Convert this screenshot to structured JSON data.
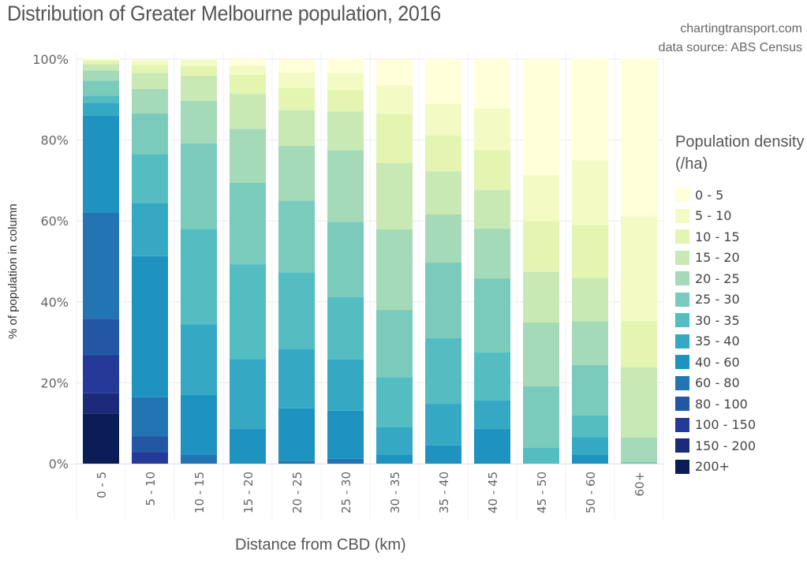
{
  "header": {
    "title": "Distribution of Greater Melbourne population, 2016",
    "credit_site": "chartingtransport.com",
    "credit_source": "data source: ABS Census"
  },
  "chart_data": {
    "type": "bar",
    "stacked": true,
    "title": "Distribution of Greater Melbourne population, 2016",
    "xlabel": "Distance from CBD (km)",
    "ylabel": "% of population in column",
    "ylim": [
      0,
      100
    ],
    "y_ticks": [
      "0%",
      "20%",
      "40%",
      "60%",
      "80%",
      "100%"
    ],
    "y_tick_values": [
      0,
      20,
      40,
      60,
      80,
      100
    ],
    "grid": true,
    "legend_title": "Population density (/ha)",
    "legend_position": "right",
    "categories": [
      "0 - 5",
      "5 - 10",
      "10 - 15",
      "15 - 20",
      "20 - 25",
      "25 - 30",
      "30 - 35",
      "35 - 40",
      "40 - 45",
      "45 - 50",
      "50 - 60",
      "60+"
    ],
    "series": [
      {
        "name": "200+",
        "color": "#0b1d57",
        "values": [
          12.3,
          0,
          0,
          0,
          0,
          0,
          0,
          0,
          0,
          0,
          0,
          0
        ]
      },
      {
        "name": "150 - 200",
        "color": "#1c2a7a",
        "values": [
          5.1,
          0,
          0,
          0,
          0,
          0,
          0,
          0,
          0,
          0,
          0,
          0
        ]
      },
      {
        "name": "100 - 150",
        "color": "#253a98",
        "values": [
          9.4,
          2.9,
          0,
          0,
          0,
          0,
          0,
          0,
          0,
          0,
          0,
          0
        ]
      },
      {
        "name": "80 - 100",
        "color": "#2357a3",
        "values": [
          9.0,
          3.9,
          0,
          0,
          0,
          0,
          0,
          0,
          0,
          0,
          0,
          0
        ]
      },
      {
        "name": "60 - 80",
        "color": "#2274b2",
        "values": [
          26.3,
          9.6,
          2.3,
          0,
          0.6,
          1.2,
          0,
          0,
          0,
          0,
          0,
          0
        ]
      },
      {
        "name": "40 - 60",
        "color": "#1f93c0",
        "values": [
          24.0,
          34.9,
          14.8,
          8.6,
          13.1,
          11.9,
          2.3,
          4.5,
          8.6,
          0,
          2.3,
          0
        ]
      },
      {
        "name": "35 - 40",
        "color": "#35a9c3",
        "values": [
          3.1,
          13.1,
          17.3,
          17.3,
          14.7,
          12.7,
          6.8,
          10.3,
          7.0,
          0,
          4.3,
          0
        ]
      },
      {
        "name": "30 - 35",
        "color": "#54bdc2",
        "values": [
          1.8,
          12.1,
          23.6,
          23.4,
          18.9,
          15.4,
          12.3,
          16.2,
          11.9,
          3.9,
          5.3,
          0
        ]
      },
      {
        "name": "25 - 30",
        "color": "#7acbbc",
        "values": [
          3.7,
          10.1,
          21.2,
          20.1,
          17.7,
          18.6,
          16.6,
          18.7,
          18.3,
          15.2,
          12.5,
          0.4
        ]
      },
      {
        "name": "20 - 25",
        "color": "#a4dab8",
        "values": [
          2.5,
          6.0,
          10.5,
          13.4,
          13.6,
          17.7,
          19.9,
          11.9,
          12.3,
          15.8,
          10.8,
          6.1
        ]
      },
      {
        "name": "15 - 20",
        "color": "#c9e9b4",
        "values": [
          1.6,
          4.0,
          6.2,
          8.6,
          8.8,
          9.6,
          16.5,
          10.7,
          9.6,
          12.5,
          10.7,
          17.3
        ]
      },
      {
        "name": "10 - 15",
        "color": "#e4f4b1",
        "values": [
          0.8,
          2.0,
          2.4,
          4.7,
          5.5,
          5.2,
          12.1,
          8.8,
          9.8,
          12.5,
          13.1,
          11.4
        ]
      },
      {
        "name": "5 - 10",
        "color": "#f3fac3",
        "values": [
          0.3,
          1.0,
          1.4,
          2.2,
          3.8,
          4.3,
          7.0,
          7.8,
          10.3,
          11.4,
          16.0,
          25.9
        ]
      },
      {
        "name": "0 - 5",
        "color": "#ffffd9",
        "values": [
          0.3,
          0.3,
          0.2,
          1.7,
          3.2,
          3.5,
          6.4,
          11.1,
          12.2,
          28.7,
          25.1,
          39.0
        ]
      }
    ],
    "legend_order": [
      "0 - 5",
      "5 - 10",
      "10 - 15",
      "15 - 20",
      "20 - 25",
      "25 - 30",
      "30 - 35",
      "35 - 40",
      "40 - 60",
      "60 - 80",
      "80 - 100",
      "100 - 150",
      "150 - 200",
      "200+"
    ]
  }
}
